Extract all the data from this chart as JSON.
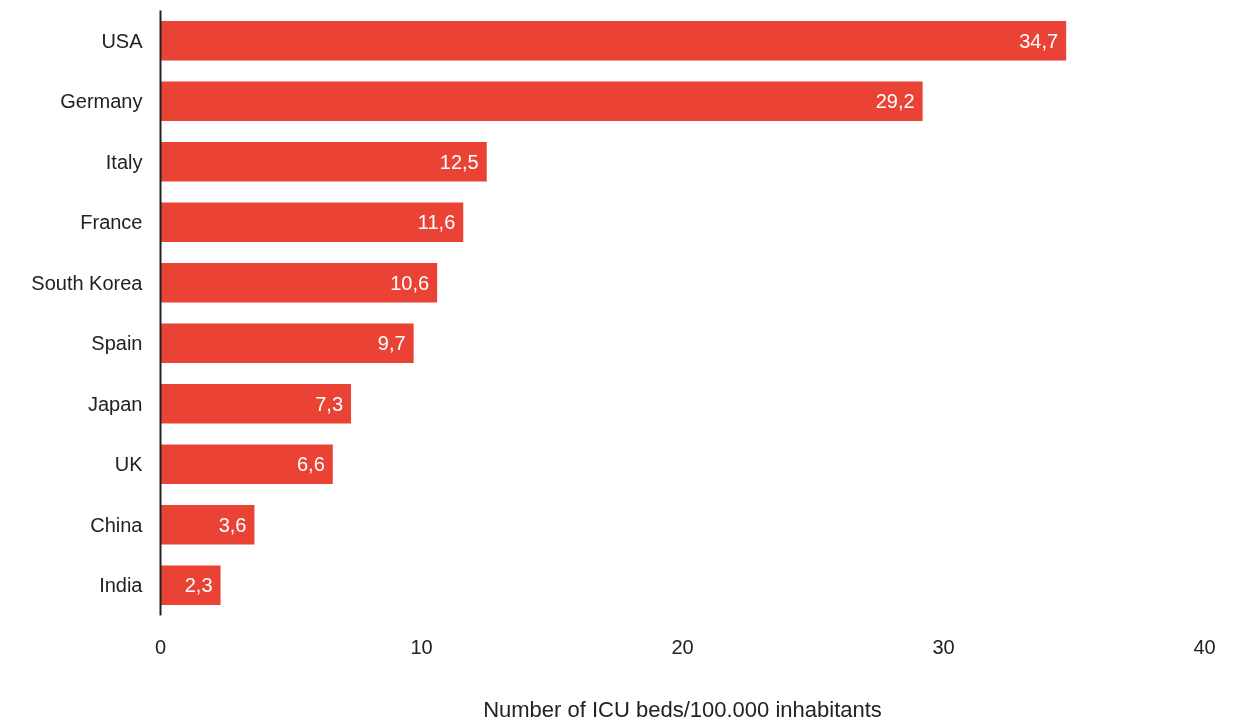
{
  "chart_data": {
    "type": "bar",
    "orientation": "horizontal",
    "xlabel": "Number of ICU beds/100.000 inhabitants",
    "categories": [
      "USA",
      "Germany",
      "Italy",
      "France",
      "South Korea",
      "Spain",
      "Japan",
      "UK",
      "China",
      "India"
    ],
    "values": [
      34.7,
      29.2,
      12.5,
      11.6,
      10.6,
      9.7,
      7.3,
      6.6,
      3.6,
      2.3
    ],
    "value_labels": [
      "34,7",
      "29,2",
      "12,5",
      "11,6",
      "10,6",
      "9,7",
      "7,3",
      "6,6",
      "3,6",
      "2,3"
    ],
    "color": "#ea4335",
    "xlim": [
      0,
      40
    ],
    "xticks": [
      0,
      10,
      20,
      30,
      40
    ],
    "grid": false
  }
}
